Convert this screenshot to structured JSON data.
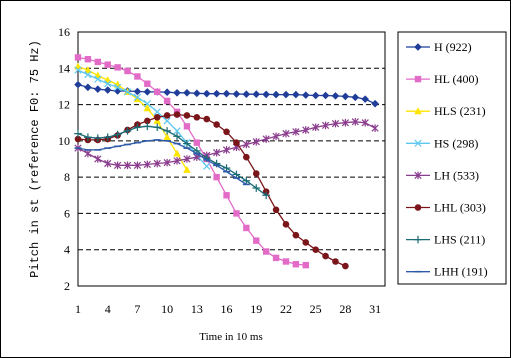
{
  "chart_data": {
    "type": "line",
    "title": "",
    "xlabel": "Time in 10 ms",
    "ylabel": "Pitch in st (reference F0: 75 Hz)",
    "xlim": [
      1,
      32
    ],
    "ylim": [
      2,
      16
    ],
    "x_ticks": [
      1,
      4,
      7,
      10,
      13,
      16,
      19,
      22,
      25,
      28,
      31
    ],
    "y_ticks": [
      2,
      4,
      6,
      8,
      10,
      12,
      14,
      16
    ],
    "grid": "horizontal dashed",
    "legend_position": "right",
    "series": [
      {
        "name": "H (922)",
        "marker": "diamond",
        "color": "#1F3D99",
        "x": [
          1,
          2,
          3,
          4,
          5,
          6,
          7,
          8,
          9,
          10,
          11,
          12,
          13,
          14,
          15,
          16,
          17,
          18,
          19,
          20,
          21,
          22,
          23,
          24,
          25,
          26,
          27,
          28,
          29,
          30,
          31
        ],
        "values": [
          13.1,
          12.95,
          12.85,
          12.8,
          12.75,
          12.75,
          12.72,
          12.7,
          12.7,
          12.68,
          12.65,
          12.65,
          12.62,
          12.6,
          12.6,
          12.6,
          12.58,
          12.57,
          12.57,
          12.56,
          12.55,
          12.55,
          12.55,
          12.52,
          12.5,
          12.5,
          12.48,
          12.45,
          12.4,
          12.3,
          12.05
        ]
      },
      {
        "name": "HL (400)",
        "marker": "square",
        "color": "#E36BC8",
        "x": [
          1,
          2,
          3,
          4,
          5,
          6,
          7,
          8,
          9,
          10,
          11,
          12,
          13,
          14,
          15,
          16,
          17,
          18,
          19,
          20,
          21,
          22,
          23,
          24
        ],
        "values": [
          14.6,
          14.5,
          14.35,
          14.2,
          14.05,
          13.85,
          13.55,
          13.15,
          12.7,
          12.2,
          11.6,
          10.8,
          9.9,
          9.0,
          8.0,
          7.0,
          6.0,
          5.2,
          4.5,
          3.9,
          3.55,
          3.35,
          3.2,
          3.15
        ]
      },
      {
        "name": "HLS (231)",
        "marker": "triangle",
        "color": "#FFE500",
        "x": [
          1,
          2,
          3,
          4,
          5,
          6,
          7,
          8,
          9,
          10,
          11,
          12
        ],
        "values": [
          14.1,
          13.9,
          13.6,
          13.35,
          13.1,
          12.7,
          12.3,
          11.8,
          11.1,
          10.2,
          9.3,
          8.4
        ]
      },
      {
        "name": "HS (298)",
        "marker": "x",
        "color": "#5EC8F0",
        "x": [
          1,
          2,
          3,
          4,
          5,
          6,
          7,
          8,
          9,
          10,
          11,
          12,
          13,
          14
        ],
        "values": [
          13.9,
          13.65,
          13.4,
          13.15,
          12.95,
          12.7,
          12.4,
          12.05,
          11.6,
          11.1,
          10.55,
          9.9,
          9.2,
          8.6
        ]
      },
      {
        "name": "LH (533)",
        "marker": "star",
        "color": "#8B3D8E",
        "x": [
          1,
          2,
          3,
          4,
          5,
          6,
          7,
          8,
          9,
          10,
          11,
          12,
          13,
          14,
          15,
          16,
          17,
          18,
          19,
          20,
          21,
          22,
          23,
          24,
          25,
          26,
          27,
          28,
          29,
          30,
          31
        ],
        "values": [
          9.6,
          9.3,
          9.0,
          8.75,
          8.65,
          8.65,
          8.65,
          8.7,
          8.75,
          8.8,
          8.9,
          9.0,
          9.1,
          9.2,
          9.35,
          9.5,
          9.65,
          9.8,
          9.95,
          10.1,
          10.25,
          10.4,
          10.5,
          10.6,
          10.75,
          10.85,
          10.95,
          11.0,
          11.05,
          11.0,
          10.7
        ]
      },
      {
        "name": "LHL (303)",
        "marker": "circle",
        "color": "#7A1519",
        "x": [
          1,
          2,
          3,
          4,
          5,
          6,
          7,
          8,
          9,
          10,
          11,
          12,
          13,
          14,
          15,
          16,
          17,
          18,
          19,
          20,
          21,
          22,
          23,
          24,
          25,
          26,
          27,
          28
        ],
        "values": [
          10.1,
          10.05,
          10.05,
          10.1,
          10.3,
          10.6,
          10.9,
          11.1,
          11.3,
          11.4,
          11.45,
          11.4,
          11.3,
          11.2,
          10.9,
          10.5,
          9.9,
          9.1,
          8.2,
          7.2,
          6.2,
          5.4,
          4.8,
          4.4,
          4.0,
          3.65,
          3.35,
          3.1
        ]
      },
      {
        "name": "LHS (211)",
        "marker": "plus",
        "color": "#1A6B75",
        "x": [
          1,
          2,
          3,
          4,
          5,
          6,
          7,
          8,
          9,
          10,
          11,
          12,
          13,
          14,
          15,
          16,
          17,
          18,
          19,
          20
        ],
        "values": [
          10.4,
          10.2,
          10.15,
          10.2,
          10.35,
          10.55,
          10.75,
          10.8,
          10.75,
          10.55,
          10.25,
          9.85,
          9.45,
          9.05,
          8.75,
          8.5,
          8.15,
          7.8,
          7.4,
          7.0
        ]
      },
      {
        "name": "LHH (191)",
        "marker": "dash",
        "color": "#2E5BA8",
        "x": [
          1,
          2,
          3,
          4,
          5,
          6,
          7,
          8,
          9,
          10,
          11,
          12,
          13,
          14,
          15,
          16,
          17,
          18
        ],
        "values": [
          9.6,
          9.5,
          9.5,
          9.6,
          9.7,
          9.8,
          9.9,
          10.0,
          10.05,
          10.0,
          9.85,
          9.6,
          9.3,
          8.95,
          8.65,
          8.3,
          7.95,
          7.6
        ]
      }
    ]
  }
}
